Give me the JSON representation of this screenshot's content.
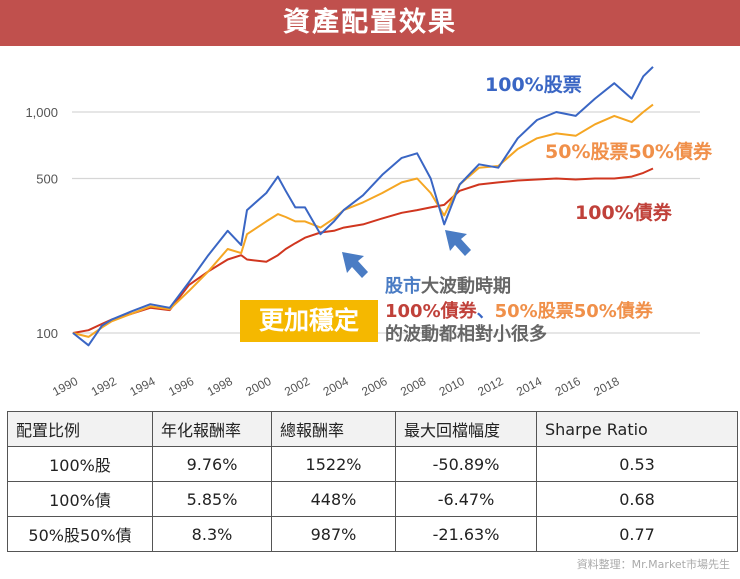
{
  "title": "資產配置效果",
  "chart_data": {
    "type": "line",
    "title": "",
    "xlabel": "",
    "ylabel": "",
    "yscale": "log",
    "ylim": [
      80,
      1800
    ],
    "xlim": [
      1990,
      2020
    ],
    "yticks": [
      {
        "value": 100,
        "label": "100"
      },
      {
        "value": 500,
        "label": "500"
      },
      {
        "value": 1000,
        "label": "1,000"
      }
    ],
    "xticks": [
      "1990",
      "1992",
      "1994",
      "1996",
      "1998",
      "2000",
      "2002",
      "2004",
      "2006",
      "2008",
      "2010",
      "2012",
      "2014",
      "2016",
      "2018"
    ],
    "grid": true,
    "x": [
      1990,
      1990.8,
      1991.5,
      1992,
      1993,
      1994,
      1995,
      1996,
      1997,
      1998,
      1998.7,
      1999,
      2000,
      2000.6,
      2001,
      2001.5,
      2002,
      2002.8,
      2003.5,
      2004,
      2005,
      2006,
      2007,
      2007.8,
      2008.5,
      2009.2,
      2010,
      2011,
      2012,
      2013,
      2014,
      2015,
      2016,
      2017,
      2018,
      2018.9,
      2019.5,
      2020
    ],
    "series": [
      {
        "name": "100%股票",
        "color": "#3a66c4",
        "values": [
          100,
          88,
          108,
          115,
          125,
          135,
          130,
          170,
          225,
          290,
          250,
          360,
          430,
          510,
          440,
          370,
          370,
          280,
          320,
          360,
          420,
          520,
          620,
          650,
          500,
          310,
          470,
          580,
          560,
          760,
          920,
          1000,
          960,
          1150,
          1350,
          1150,
          1450,
          1600
        ]
      },
      {
        "name": "50%股票50%債券",
        "color": "#f5a623",
        "values": [
          100,
          96,
          106,
          113,
          122,
          132,
          128,
          155,
          190,
          240,
          230,
          280,
          320,
          345,
          335,
          320,
          320,
          300,
          330,
          360,
          390,
          430,
          480,
          500,
          430,
          340,
          470,
          560,
          570,
          680,
          760,
          800,
          780,
          880,
          960,
          900,
          1000,
          1080
        ]
      },
      {
        "name": "100%債券",
        "color": "#d0361f",
        "values": [
          100,
          103,
          110,
          115,
          122,
          130,
          127,
          165,
          190,
          215,
          225,
          215,
          210,
          225,
          240,
          255,
          270,
          285,
          290,
          300,
          310,
          330,
          350,
          360,
          370,
          380,
          440,
          470,
          480,
          490,
          495,
          500,
          495,
          500,
          500,
          510,
          530,
          555
        ]
      }
    ],
    "annotations": {
      "stable_box": "更加穩定",
      "line1_blue": "股市",
      "line1_gray": "大波動時期",
      "line2_red": "100%債券",
      "line2_sep": "、",
      "line2_orange": "50%股票50%債券",
      "line3": "的波動都相對小很多"
    }
  },
  "table": {
    "headers": [
      "配置比例",
      "年化報酬率",
      "總報酬率",
      "最大回檔幅度",
      "Sharpe Ratio"
    ],
    "rows": [
      [
        "100%股",
        "9.76%",
        "1522%",
        "-50.89%",
        "0.53"
      ],
      [
        "100%債",
        "5.85%",
        "448%",
        "-6.47%",
        "0.68"
      ],
      [
        "50%股50%債",
        "8.3%",
        "987%",
        "-21.63%",
        "0.77"
      ]
    ]
  },
  "source": "資料整理：Mr.Market市場先生"
}
